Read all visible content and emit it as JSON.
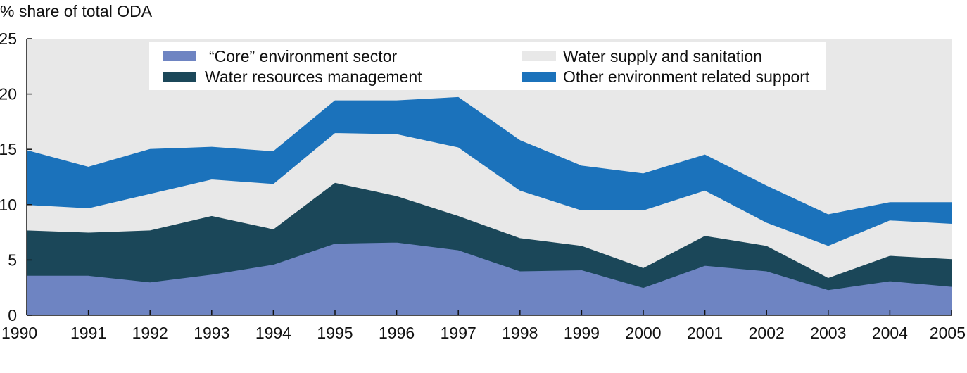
{
  "chart_data": {
    "type": "area",
    "stacked": true,
    "ylabel": "% share of total ODA",
    "xlabel": "",
    "ylim": [
      0,
      25
    ],
    "yticks": [
      0,
      5,
      10,
      15,
      20,
      25
    ],
    "grid": false,
    "background": "#e8e8e8",
    "legend_position": "top",
    "x": [
      "1990",
      "1991",
      "1992",
      "1993",
      "1994",
      "1995",
      "1996",
      "1997",
      "1998",
      "1999",
      "2000",
      "2001",
      "2002",
      "2003",
      "2004",
      "2005"
    ],
    "series": [
      {
        "name": "“Core” environment sector",
        "color": "#6e84c2",
        "values": [
          3.6,
          3.6,
          3.0,
          3.7,
          4.6,
          6.5,
          6.6,
          5.9,
          4.0,
          4.1,
          2.5,
          4.5,
          4.0,
          2.3,
          3.1,
          2.6
        ]
      },
      {
        "name": "Water resources management",
        "color": "#1b4759",
        "values": [
          4.1,
          3.9,
          4.7,
          5.3,
          3.2,
          5.5,
          4.2,
          3.1,
          3.0,
          2.2,
          1.8,
          2.7,
          2.3,
          1.1,
          2.3,
          2.5
        ]
      },
      {
        "name": "Water supply and sanitation",
        "color": "#e8e8e8",
        "values": [
          2.3,
          2.2,
          3.3,
          3.3,
          4.1,
          4.5,
          5.6,
          6.2,
          4.3,
          3.2,
          5.2,
          4.1,
          2.1,
          2.9,
          3.2,
          3.2
        ]
      },
      {
        "name": "Other environment related support",
        "color": "#1b72bb",
        "values": [
          4.9,
          3.7,
          4.0,
          2.9,
          2.9,
          2.9,
          3.0,
          4.5,
          4.5,
          4.0,
          3.3,
          3.2,
          3.3,
          2.8,
          1.6,
          1.9
        ]
      }
    ]
  }
}
